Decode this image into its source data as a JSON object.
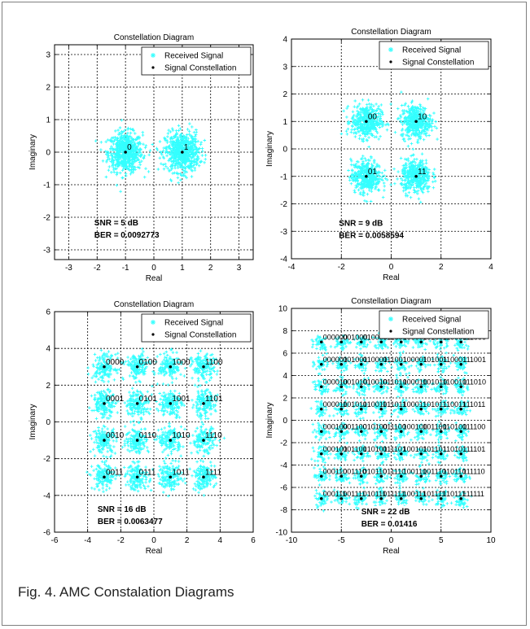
{
  "figure": {
    "caption": "Fig. 4. AMC Constalation Diagrams"
  },
  "legend_labels": {
    "received": "Received Signal",
    "constellation": "Signal Constellation"
  },
  "colors": {
    "received": "#33ffff",
    "constellation": "#000000",
    "grid": "#000000"
  },
  "chart_data": [
    {
      "type": "scatter",
      "title": "Constellation Diagram",
      "xlabel": "Real",
      "ylabel": "Imaginary",
      "xlim": [
        -3.5,
        3.5
      ],
      "ylim": [
        -3.3,
        3.3
      ],
      "xticks": [
        -3,
        -2,
        -1,
        0,
        1,
        2,
        3
      ],
      "yticks": [
        -3,
        -2,
        -1,
        0,
        1,
        2,
        3
      ],
      "legend": "top-right",
      "series": [
        {
          "name": "Received Signal",
          "description_of_spread": 0.3
        },
        {
          "name": "Signal Constellation",
          "points": [
            {
              "x": -1,
              "y": 0,
              "label": "0"
            },
            {
              "x": 1,
              "y": 0,
              "label": "1"
            }
          ]
        }
      ],
      "annotations": [
        "SNR = 5 dB",
        "BER = 0.0092773"
      ]
    },
    {
      "type": "scatter",
      "title": "Constellation Diagram",
      "xlabel": "Real",
      "ylabel": "Imaginary",
      "xlim": [
        -4,
        4
      ],
      "ylim": [
        -4,
        4
      ],
      "xticks": [
        -4,
        -2,
        0,
        2,
        4
      ],
      "yticks": [
        -4,
        -3,
        -2,
        -1,
        0,
        1,
        2,
        3,
        4
      ],
      "legend": "top-right",
      "series": [
        {
          "name": "Received Signal",
          "description_of_spread": 0.3
        },
        {
          "name": "Signal Constellation",
          "points": [
            {
              "x": -1,
              "y": 1,
              "label": "00"
            },
            {
              "x": 1,
              "y": 1,
              "label": "10"
            },
            {
              "x": -1,
              "y": -1,
              "label": "01"
            },
            {
              "x": 1,
              "y": -1,
              "label": "11"
            }
          ]
        }
      ],
      "annotations": [
        "SNR = 9 dB",
        "BER = 0.0058594"
      ]
    },
    {
      "type": "scatter",
      "title": "Constellation Diagram",
      "xlabel": "Real",
      "ylabel": "Imaginary",
      "xlim": [
        -6,
        6
      ],
      "ylim": [
        -6,
        6
      ],
      "xticks": [
        -6,
        -4,
        -2,
        0,
        2,
        4,
        6
      ],
      "yticks": [
        -6,
        -4,
        -2,
        0,
        2,
        4,
        6
      ],
      "legend": "top-right",
      "series": [
        {
          "name": "Received Signal",
          "description_of_spread": 0.35
        },
        {
          "name": "Signal Constellation",
          "points": [
            {
              "x": -3,
              "y": 3,
              "label": "0000"
            },
            {
              "x": -1,
              "y": 3,
              "label": "0100"
            },
            {
              "x": 1,
              "y": 3,
              "label": "1000"
            },
            {
              "x": 3,
              "y": 3,
              "label": "1100"
            },
            {
              "x": -3,
              "y": 1,
              "label": "0001"
            },
            {
              "x": -1,
              "y": 1,
              "label": "0101"
            },
            {
              "x": 1,
              "y": 1,
              "label": "1001"
            },
            {
              "x": 3,
              "y": 1,
              "label": "1101"
            },
            {
              "x": -3,
              "y": -1,
              "label": "0010"
            },
            {
              "x": -1,
              "y": -1,
              "label": "0110"
            },
            {
              "x": 1,
              "y": -1,
              "label": "1010"
            },
            {
              "x": 3,
              "y": -1,
              "label": "1110"
            },
            {
              "x": -3,
              "y": -3,
              "label": "0011"
            },
            {
              "x": -1,
              "y": -3,
              "label": "0111"
            },
            {
              "x": 1,
              "y": -3,
              "label": "1011"
            },
            {
              "x": 3,
              "y": -3,
              "label": "1111"
            }
          ]
        }
      ],
      "annotations": [
        "SNR = 16 dB",
        "BER = 0.0063477"
      ]
    },
    {
      "type": "scatter",
      "title": "Constellation Diagram",
      "xlabel": "Real",
      "ylabel": "Imaginary",
      "xlim": [
        -10,
        10
      ],
      "ylim": [
        -10,
        10
      ],
      "xticks": [
        -10,
        -5,
        0,
        5,
        10
      ],
      "yticks": [
        -10,
        -8,
        -6,
        -4,
        -2,
        0,
        2,
        4,
        6,
        8,
        10
      ],
      "legend": "top-right",
      "series": [
        {
          "name": "Received Signal",
          "description_of_spread": 0.35
        },
        {
          "name": "Signal Constellation",
          "grid_levels": [
            -7,
            -5,
            -3,
            -1,
            1,
            3,
            5,
            7
          ],
          "points": [
            {
              "x": -7,
              "y": 7,
              "label": "000000"
            },
            {
              "x": -5,
              "y": 7,
              "label": "001000"
            },
            {
              "x": -3,
              "y": 7,
              "label": "010000"
            },
            {
              "x": -1,
              "y": 7,
              "label": "011000"
            },
            {
              "x": 1,
              "y": 7,
              "label": "100000"
            },
            {
              "x": 3,
              "y": 7,
              "label": "101000"
            },
            {
              "x": 5,
              "y": 7,
              "label": "110000"
            },
            {
              "x": 7,
              "y": 7,
              "label": "111000"
            },
            {
              "x": -7,
              "y": 5,
              "label": "000001"
            },
            {
              "x": -5,
              "y": 5,
              "label": "001001"
            },
            {
              "x": -3,
              "y": 5,
              "label": "010001"
            },
            {
              "x": -1,
              "y": 5,
              "label": "011001"
            },
            {
              "x": 1,
              "y": 5,
              "label": "100001"
            },
            {
              "x": 3,
              "y": 5,
              "label": "101001"
            },
            {
              "x": 5,
              "y": 5,
              "label": "110001"
            },
            {
              "x": 7,
              "y": 5,
              "label": "111001"
            },
            {
              "x": -7,
              "y": 3,
              "label": "000010"
            },
            {
              "x": -5,
              "y": 3,
              "label": "001010"
            },
            {
              "x": -3,
              "y": 3,
              "label": "010010"
            },
            {
              "x": -1,
              "y": 3,
              "label": "011010"
            },
            {
              "x": 1,
              "y": 3,
              "label": "100010"
            },
            {
              "x": 3,
              "y": 3,
              "label": "101010"
            },
            {
              "x": 5,
              "y": 3,
              "label": "110010"
            },
            {
              "x": 7,
              "y": 3,
              "label": "111010"
            },
            {
              "x": -7,
              "y": 1,
              "label": "000011"
            },
            {
              "x": -5,
              "y": 1,
              "label": "001011"
            },
            {
              "x": -3,
              "y": 1,
              "label": "010011"
            },
            {
              "x": -1,
              "y": 1,
              "label": "011011"
            },
            {
              "x": 1,
              "y": 1,
              "label": "100011"
            },
            {
              "x": 3,
              "y": 1,
              "label": "101011"
            },
            {
              "x": 5,
              "y": 1,
              "label": "110011"
            },
            {
              "x": 7,
              "y": 1,
              "label": "111011"
            },
            {
              "x": -7,
              "y": -1,
              "label": "000100"
            },
            {
              "x": -5,
              "y": -1,
              "label": "001100"
            },
            {
              "x": -3,
              "y": -1,
              "label": "010100"
            },
            {
              "x": -1,
              "y": -1,
              "label": "011100"
            },
            {
              "x": 1,
              "y": -1,
              "label": "100100"
            },
            {
              "x": 3,
              "y": -1,
              "label": "101100"
            },
            {
              "x": 5,
              "y": -1,
              "label": "110100"
            },
            {
              "x": 7,
              "y": -1,
              "label": "111100"
            },
            {
              "x": -7,
              "y": -3,
              "label": "000101"
            },
            {
              "x": -5,
              "y": -3,
              "label": "001101"
            },
            {
              "x": -3,
              "y": -3,
              "label": "010101"
            },
            {
              "x": -1,
              "y": -3,
              "label": "011101"
            },
            {
              "x": 1,
              "y": -3,
              "label": "100101"
            },
            {
              "x": 3,
              "y": -3,
              "label": "101101"
            },
            {
              "x": 5,
              "y": -3,
              "label": "110101"
            },
            {
              "x": 7,
              "y": -3,
              "label": "111101"
            },
            {
              "x": -7,
              "y": -5,
              "label": "000110"
            },
            {
              "x": -5,
              "y": -5,
              "label": "001110"
            },
            {
              "x": -3,
              "y": -5,
              "label": "010110"
            },
            {
              "x": -1,
              "y": -5,
              "label": "011110"
            },
            {
              "x": 1,
              "y": -5,
              "label": "100110"
            },
            {
              "x": 3,
              "y": -5,
              "label": "101110"
            },
            {
              "x": 5,
              "y": -5,
              "label": "110110"
            },
            {
              "x": 7,
              "y": -5,
              "label": "111110"
            },
            {
              "x": -7,
              "y": -7,
              "label": "000111"
            },
            {
              "x": -5,
              "y": -7,
              "label": "001111"
            },
            {
              "x": -3,
              "y": -7,
              "label": "010111"
            },
            {
              "x": -1,
              "y": -7,
              "label": "011111"
            },
            {
              "x": 1,
              "y": -7,
              "label": "100111"
            },
            {
              "x": 3,
              "y": -7,
              "label": "101111"
            },
            {
              "x": 5,
              "y": -7,
              "label": "110111"
            },
            {
              "x": 7,
              "y": -7,
              "label": "111111"
            }
          ]
        }
      ],
      "annotations": [
        "SNR = 22 dB",
        "BER = 0.01416"
      ]
    }
  ]
}
